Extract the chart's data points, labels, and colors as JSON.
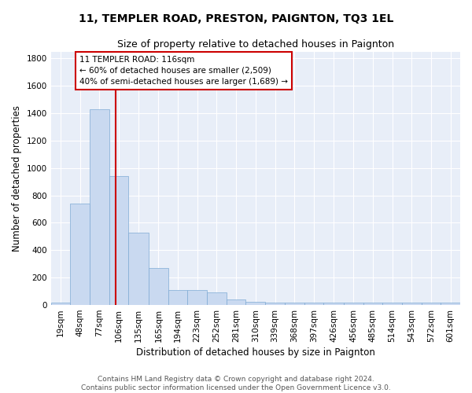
{
  "title": "11, TEMPLER ROAD, PRESTON, PAIGNTON, TQ3 1EL",
  "subtitle": "Size of property relative to detached houses in Paignton",
  "xlabel": "Distribution of detached houses by size in Paignton",
  "ylabel": "Number of detached properties",
  "bar_edges": [
    19,
    48,
    77,
    106,
    135,
    165,
    194,
    223,
    252,
    281,
    310,
    339,
    368,
    397,
    426,
    456,
    485,
    514,
    543,
    572,
    601
  ],
  "bar_heights": [
    20,
    740,
    1430,
    940,
    530,
    270,
    110,
    110,
    90,
    40,
    25,
    15,
    15,
    15,
    15,
    15,
    15,
    15,
    15,
    15,
    15
  ],
  "bar_color": "#c9d9f0",
  "bar_edge_color": "#7eaad4",
  "bg_color": "#e8eef8",
  "grid_color": "#ffffff",
  "vline_x": 116,
  "vline_color": "#cc0000",
  "annotation_lines": [
    "11 TEMPLER ROAD: 116sqm",
    "← 60% of detached houses are smaller (2,509)",
    "40% of semi-detached houses are larger (1,689) →"
  ],
  "annotation_box_color": "#cc0000",
  "annotation_text_color": "#000000",
  "ylim": [
    0,
    1850
  ],
  "yticks": [
    0,
    200,
    400,
    600,
    800,
    1000,
    1200,
    1400,
    1600,
    1800
  ],
  "footer_line1": "Contains HM Land Registry data © Crown copyright and database right 2024.",
  "footer_line2": "Contains public sector information licensed under the Open Government Licence v3.0.",
  "title_fontsize": 10,
  "subtitle_fontsize": 9,
  "xlabel_fontsize": 8.5,
  "ylabel_fontsize": 8.5,
  "tick_fontsize": 7.5,
  "annotation_fontsize": 7.5,
  "footer_fontsize": 6.5
}
